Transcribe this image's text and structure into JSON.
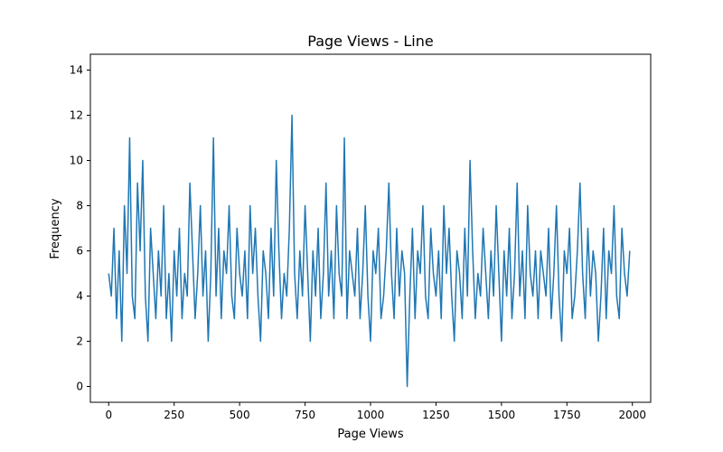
{
  "chart_data": {
    "type": "line",
    "title": "Page Views - Line",
    "xlabel": "Page Views",
    "ylabel": "Frequency",
    "xlim": [
      -70,
      2070
    ],
    "ylim": [
      -0.7,
      14.7
    ],
    "x_ticks": [
      0,
      250,
      500,
      750,
      1000,
      1250,
      1500,
      1750,
      2000
    ],
    "x_tick_labels": [
      "0",
      "250",
      "500",
      "750",
      "1000",
      "1250",
      "1500",
      "1750",
      "2000"
    ],
    "y_ticks": [
      0,
      2,
      4,
      6,
      8,
      10,
      12,
      14
    ],
    "y_tick_labels": [
      "0",
      "2",
      "4",
      "6",
      "8",
      "10",
      "12",
      "14"
    ],
    "grid": false,
    "legend": "none",
    "series": [
      {
        "color": "#1f77b4",
        "x_start": 0,
        "x_step": 10,
        "values": [
          5,
          4,
          7,
          3,
          6,
          2,
          8,
          5,
          11,
          4,
          3,
          9,
          6,
          10,
          4,
          2,
          7,
          5,
          3,
          6,
          4,
          8,
          3,
          5,
          2,
          6,
          4,
          7,
          3,
          5,
          4,
          9,
          6,
          3,
          5,
          8,
          4,
          6,
          2,
          5,
          11,
          4,
          7,
          3,
          6,
          5,
          8,
          4,
          3,
          7,
          5,
          4,
          6,
          3,
          8,
          5,
          7,
          4,
          2,
          6,
          5,
          3,
          7,
          4,
          10,
          6,
          3,
          5,
          4,
          7,
          12,
          5,
          3,
          6,
          4,
          8,
          5,
          2,
          6,
          4,
          7,
          3,
          5,
          9,
          4,
          6,
          3,
          8,
          5,
          4,
          11,
          3,
          6,
          5,
          4,
          7,
          3,
          5,
          8,
          4,
          2,
          6,
          5,
          7,
          3,
          4,
          6,
          9,
          5,
          3,
          7,
          4,
          6,
          5,
          0,
          4,
          7,
          3,
          6,
          5,
          8,
          4,
          3,
          7,
          5,
          4,
          6,
          3,
          8,
          5,
          7,
          4,
          2,
          6,
          5,
          3,
          7,
          4,
          10,
          6,
          3,
          5,
          4,
          7,
          5,
          3,
          6,
          4,
          8,
          5,
          2,
          6,
          4,
          7,
          3,
          5,
          9,
          4,
          6,
          3,
          8,
          5,
          4,
          6,
          3,
          6,
          5,
          4,
          7,
          3,
          5,
          8,
          4,
          2,
          6,
          5,
          7,
          3,
          4,
          6,
          9,
          5,
          3,
          7,
          4,
          6,
          5,
          2,
          4,
          7,
          3,
          6,
          5,
          8,
          4,
          3,
          7,
          5,
          4,
          6
        ]
      }
    ]
  }
}
